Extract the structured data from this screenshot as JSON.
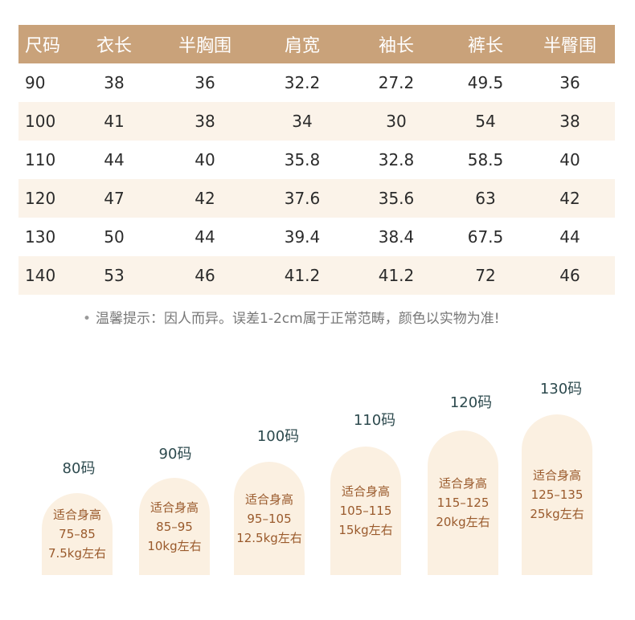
{
  "table": {
    "headers": [
      "尺码",
      "衣长",
      "半胸围",
      "肩宽",
      "袖长",
      "裤长",
      "半臀围"
    ],
    "rows": [
      [
        "90",
        "38",
        "36",
        "32.2",
        "27.2",
        "49.5",
        "36"
      ],
      [
        "100",
        "41",
        "38",
        "34",
        "30",
        "54",
        "38"
      ],
      [
        "110",
        "44",
        "40",
        "35.8",
        "32.8",
        "58.5",
        "40"
      ],
      [
        "120",
        "47",
        "42",
        "37.6",
        "35.6",
        "63",
        "42"
      ],
      [
        "130",
        "50",
        "44",
        "39.4",
        "38.4",
        "67.5",
        "44"
      ],
      [
        "140",
        "53",
        "46",
        "41.2",
        "41.2",
        "72",
        "46"
      ]
    ]
  },
  "note": "温馨提示：因人而异。误差1-2cm属于正常范畴，颜色以实物为准!",
  "height_guide": [
    {
      "size": "80码",
      "label": "适合身高",
      "range": "75–85",
      "weight": "7.5kg左右"
    },
    {
      "size": "90码",
      "label": "适合身高",
      "range": "85–95",
      "weight": "10kg左右"
    },
    {
      "size": "100码",
      "label": "适合身高",
      "range": "95–105",
      "weight": "12.5kg左右"
    },
    {
      "size": "110码",
      "label": "适合身高",
      "range": "105–115",
      "weight": "15kg左右"
    },
    {
      "size": "120码",
      "label": "适合身高",
      "range": "115–125",
      "weight": "20kg左右"
    },
    {
      "size": "130码",
      "label": "适合身高",
      "range": "125–135",
      "weight": "25kg左右"
    }
  ],
  "colors": {
    "header_bg": "#c9a27a",
    "alt_row_bg": "#fbf3e9",
    "card_bg": "#fbf0e1",
    "card_text": "#9a5a2c",
    "size_label": "#2d4a4e"
  }
}
